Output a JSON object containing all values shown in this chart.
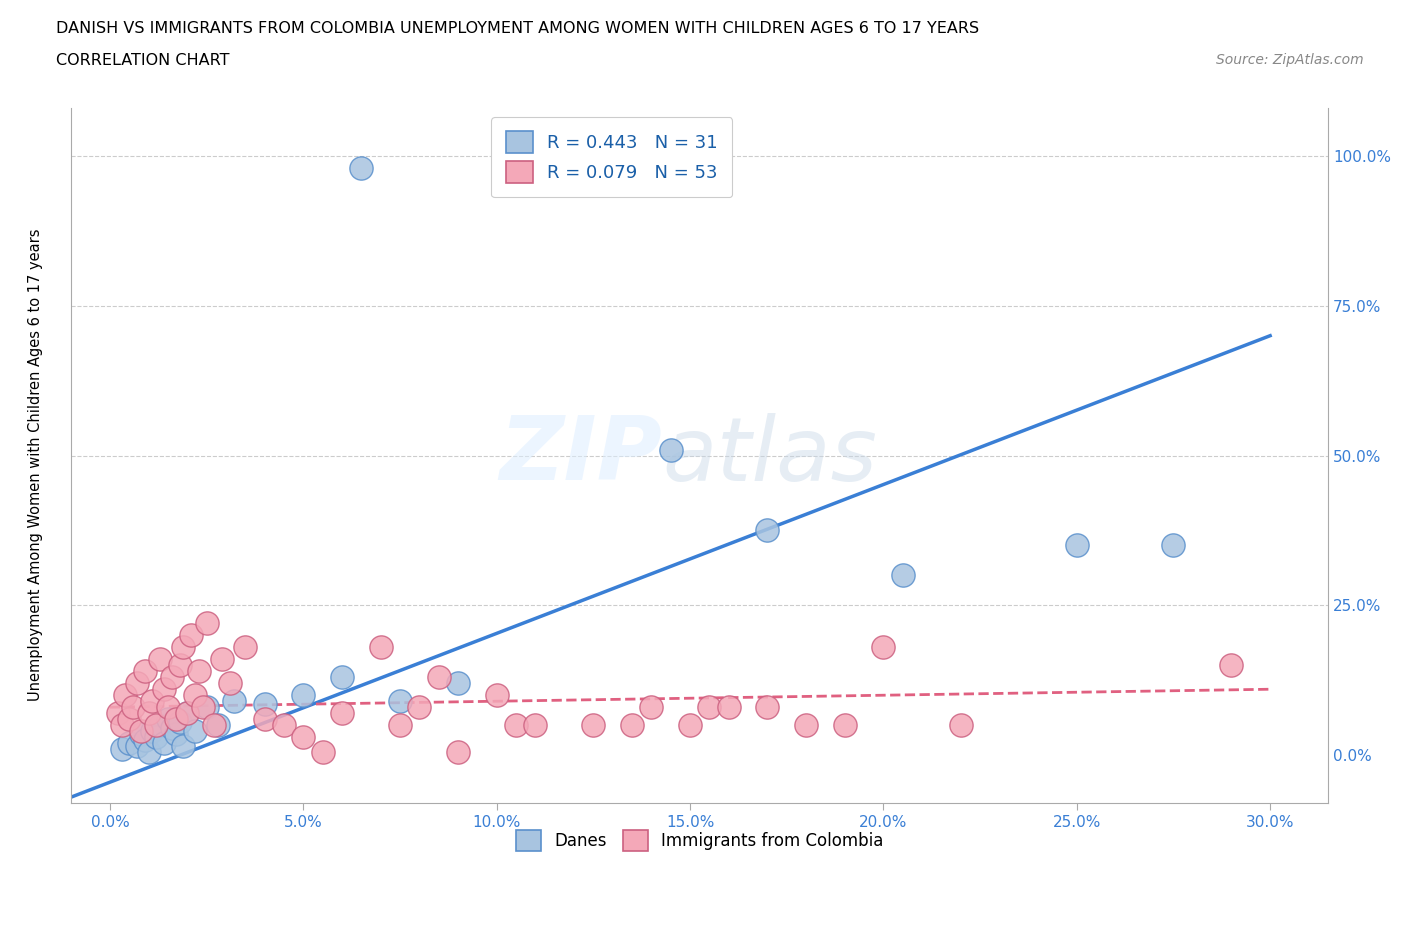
{
  "title_line1": "DANISH VS IMMIGRANTS FROM COLOMBIA UNEMPLOYMENT AMONG WOMEN WITH CHILDREN AGES 6 TO 17 YEARS",
  "title_line2": "CORRELATION CHART",
  "source_text": "Source: ZipAtlas.com",
  "ylabel_text": "Unemployment Among Women with Children Ages 6 to 17 years",
  "x_tick_labels": [
    "0.0%",
    "5.0%",
    "10.0%",
    "15.0%",
    "20.0%",
    "25.0%",
    "30.0%"
  ],
  "x_tick_values": [
    0.0,
    5.0,
    10.0,
    15.0,
    20.0,
    25.0,
    30.0
  ],
  "y_tick_labels": [
    "0.0%",
    "25.0%",
    "50.0%",
    "75.0%",
    "100.0%"
  ],
  "y_tick_values": [
    0.0,
    25.0,
    50.0,
    75.0,
    100.0
  ],
  "xlim": [
    -1.0,
    31.5
  ],
  "ylim": [
    -8.0,
    108.0
  ],
  "danes_color": "#a8c4e0",
  "danes_edge_color": "#5a90cc",
  "immigrants_color": "#f4a8b8",
  "immigrants_edge_color": "#cc6080",
  "danes_line_color": "#3a7fd5",
  "immigrants_line_color": "#e06080",
  "danes_R": 0.443,
  "danes_N": 31,
  "immigrants_R": 0.079,
  "immigrants_N": 53,
  "legend_label_danes": "Danes",
  "legend_label_immigrants": "Immigrants from Colombia",
  "watermark_zip": "ZIP",
  "watermark_atlas": "atlas",
  "danes_x": [
    0.3,
    0.5,
    0.7,
    0.8,
    0.9,
    1.0,
    1.1,
    1.2,
    1.3,
    1.4,
    1.5,
    1.6,
    1.7,
    1.8,
    1.9,
    2.0,
    2.2,
    2.5,
    2.8,
    3.2,
    4.0,
    5.0,
    6.0,
    7.5,
    9.0,
    14.5,
    17.0,
    20.5,
    25.0,
    27.5,
    6.5
  ],
  "danes_y": [
    1.0,
    2.0,
    1.5,
    3.5,
    2.5,
    0.5,
    4.0,
    3.0,
    5.0,
    2.0,
    6.0,
    4.5,
    3.5,
    5.5,
    1.5,
    7.0,
    4.0,
    8.0,
    5.0,
    9.0,
    8.5,
    10.0,
    13.0,
    9.0,
    12.0,
    51.0,
    37.5,
    30.0,
    35.0,
    35.0,
    98.0
  ],
  "immigrants_x": [
    0.2,
    0.3,
    0.4,
    0.5,
    0.6,
    0.7,
    0.8,
    0.9,
    1.0,
    1.1,
    1.2,
    1.3,
    1.4,
    1.5,
    1.6,
    1.7,
    1.8,
    1.9,
    2.0,
    2.1,
    2.2,
    2.3,
    2.4,
    2.5,
    2.7,
    2.9,
    3.1,
    3.5,
    4.0,
    4.5,
    5.0,
    5.5,
    6.0,
    7.0,
    7.5,
    8.0,
    8.5,
    9.0,
    10.0,
    10.5,
    11.0,
    12.5,
    13.5,
    14.0,
    15.0,
    15.5,
    16.0,
    17.0,
    18.0,
    19.0,
    20.0,
    22.0,
    29.0
  ],
  "immigrants_y": [
    7.0,
    5.0,
    10.0,
    6.0,
    8.0,
    12.0,
    4.0,
    14.0,
    7.0,
    9.0,
    5.0,
    16.0,
    11.0,
    8.0,
    13.0,
    6.0,
    15.0,
    18.0,
    7.0,
    20.0,
    10.0,
    14.0,
    8.0,
    22.0,
    5.0,
    16.0,
    12.0,
    18.0,
    6.0,
    5.0,
    3.0,
    0.5,
    7.0,
    18.0,
    5.0,
    8.0,
    13.0,
    0.5,
    10.0,
    5.0,
    5.0,
    5.0,
    5.0,
    8.0,
    5.0,
    8.0,
    8.0,
    8.0,
    5.0,
    5.0,
    18.0,
    5.0,
    15.0
  ]
}
